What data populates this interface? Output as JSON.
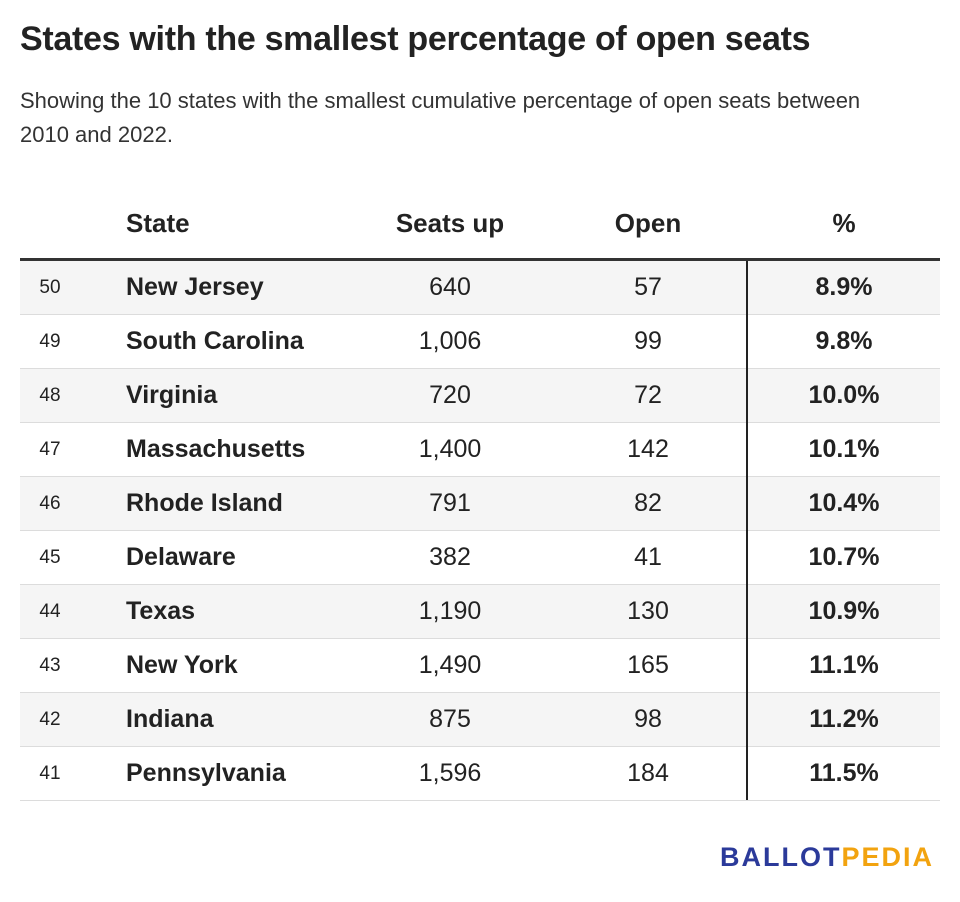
{
  "title": "States with the smallest percentage of open seats",
  "subtitle": "Showing the 10 states with the smallest cumulative percentage of open seats between 2010 and 2022.",
  "logo": {
    "part1": "BALLOT",
    "part2": "PEDIA",
    "color1": "#2b3a9a",
    "color2": "#f2a30f"
  },
  "chart_data": {
    "type": "table",
    "columns": [
      "",
      "State",
      "Seats up",
      "Open",
      "%"
    ],
    "rows": [
      {
        "rank": "50",
        "state": "New Jersey",
        "seats_up": "640",
        "open": "57",
        "pct": "8.9%"
      },
      {
        "rank": "49",
        "state": "South Carolina",
        "seats_up": "1,006",
        "open": "99",
        "pct": "9.8%"
      },
      {
        "rank": "48",
        "state": "Virginia",
        "seats_up": "720",
        "open": "72",
        "pct": "10.0%"
      },
      {
        "rank": "47",
        "state": "Massachusetts",
        "seats_up": "1,400",
        "open": "142",
        "pct": "10.1%"
      },
      {
        "rank": "46",
        "state": "Rhode Island",
        "seats_up": "791",
        "open": "82",
        "pct": "10.4%"
      },
      {
        "rank": "45",
        "state": "Delaware",
        "seats_up": "382",
        "open": "41",
        "pct": "10.7%"
      },
      {
        "rank": "44",
        "state": "Texas",
        "seats_up": "1,190",
        "open": "130",
        "pct": "10.9%"
      },
      {
        "rank": "43",
        "state": "New York",
        "seats_up": "1,490",
        "open": "165",
        "pct": "11.1%"
      },
      {
        "rank": "42",
        "state": "Indiana",
        "seats_up": "875",
        "open": "98",
        "pct": "11.2%"
      },
      {
        "rank": "41",
        "state": "Pennsylvania",
        "seats_up": "1,596",
        "open": "184",
        "pct": "11.5%"
      }
    ]
  }
}
